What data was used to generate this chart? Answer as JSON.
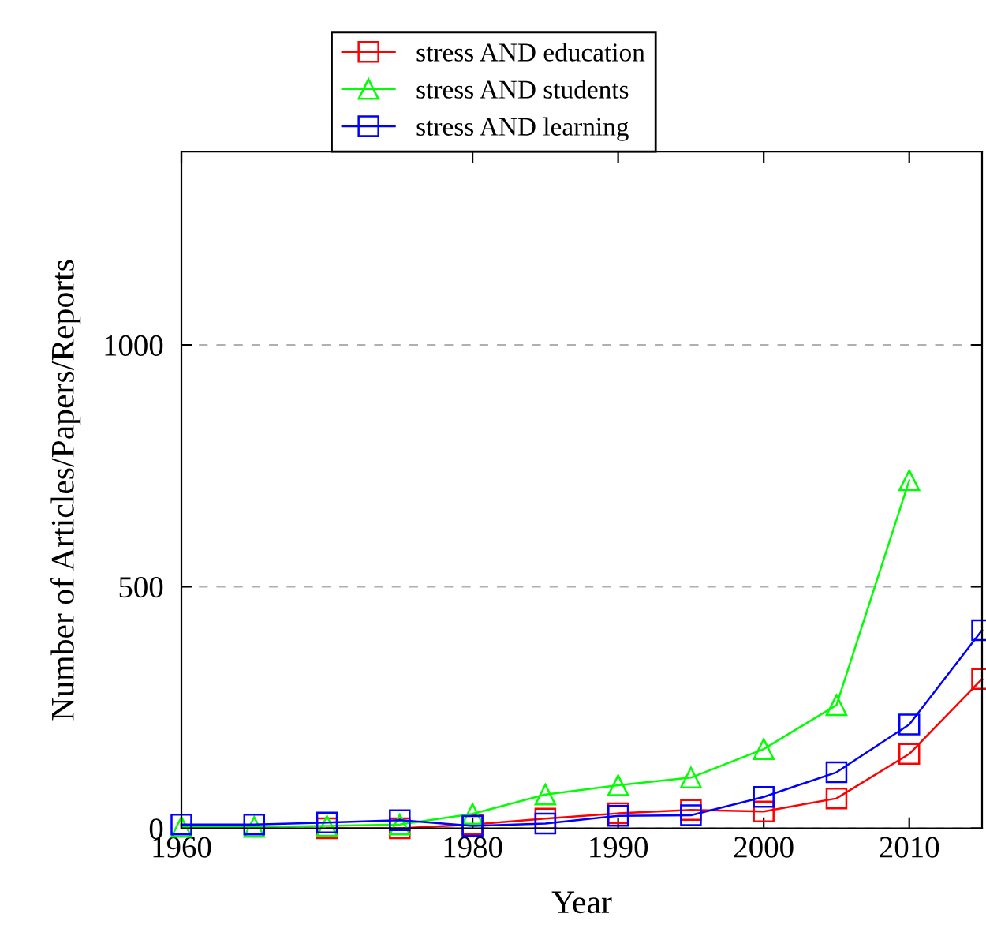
{
  "chart_data": {
    "type": "line",
    "xlabel": "Year",
    "ylabel": "Number of Articles/Papers/Reports",
    "x": [
      1960,
      1965,
      1970,
      1975,
      1980,
      1985,
      1990,
      1995,
      2000,
      2005,
      2010,
      2015
    ],
    "series": [
      {
        "name": "stress AND education",
        "color": "#ff0000",
        "marker": "square",
        "values": [
          null,
          null,
          0,
          0,
          8,
          20,
          31,
          38,
          35,
          62,
          154,
          309
        ]
      },
      {
        "name": "stress AND students",
        "color": "#00ff00",
        "marker": "triangle",
        "values": [
          3,
          3,
          5,
          8,
          30,
          70,
          89,
          105,
          164,
          255,
          720,
          null
        ]
      },
      {
        "name": "stress AND learning",
        "color": "#0000ff",
        "marker": "square",
        "values": [
          8,
          8,
          12,
          17,
          5,
          10,
          26,
          27,
          65,
          116,
          215,
          410
        ]
      }
    ],
    "xlim": [
      1960,
      2015
    ],
    "ylim": [
      0,
      1400
    ],
    "xticks": [
      1960,
      1980,
      1990,
      2000,
      2010
    ],
    "yticks": [
      0,
      500,
      1000
    ],
    "grid": "y",
    "legend": "top",
    "line_style": "solid"
  }
}
